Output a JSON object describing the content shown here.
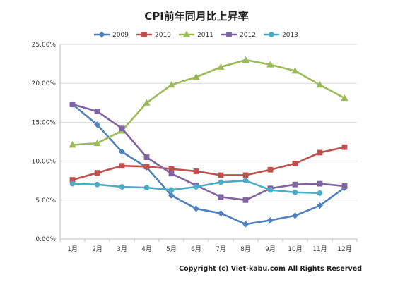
{
  "chart_data": {
    "type": "line",
    "title": "CPI前年同月比上昇率",
    "categories": [
      "1月",
      "2月",
      "3月",
      "4月",
      "5月",
      "6月",
      "7月",
      "8月",
      "9月",
      "10月",
      "11月",
      "12月"
    ],
    "ylim": [
      0,
      25
    ],
    "yticks": [
      "0.00%",
      "5.00%",
      "10.00%",
      "15.00%",
      "20.00%",
      "25.00%"
    ],
    "ytick_values": [
      0,
      5,
      10,
      15,
      20,
      25
    ],
    "grid": "horizontal",
    "legend": "top",
    "series": [
      {
        "name": "2009",
        "color": "#4f81bd",
        "marker": "diamond",
        "values": [
          17.3,
          14.7,
          11.2,
          9.2,
          5.6,
          3.9,
          3.3,
          1.9,
          2.4,
          3.0,
          4.3,
          6.6
        ]
      },
      {
        "name": "2010",
        "color": "#c0504d",
        "marker": "square",
        "values": [
          7.6,
          8.5,
          9.4,
          9.3,
          9.0,
          8.7,
          8.2,
          8.2,
          8.9,
          9.7,
          11.1,
          11.8
        ]
      },
      {
        "name": "2011",
        "color": "#9bbb59",
        "marker": "triangle",
        "values": [
          12.1,
          12.3,
          13.9,
          17.5,
          19.8,
          20.8,
          22.1,
          23.0,
          22.4,
          21.6,
          19.8,
          18.1
        ]
      },
      {
        "name": "2012",
        "color": "#8064a2",
        "marker": "square",
        "values": [
          17.3,
          16.4,
          14.2,
          10.5,
          8.4,
          6.9,
          5.4,
          5.0,
          6.5,
          7.0,
          7.1,
          6.8
        ]
      },
      {
        "name": "2013",
        "color": "#4bacc6",
        "marker": "circle",
        "values": [
          7.1,
          7.0,
          6.7,
          6.6,
          6.3,
          6.7,
          7.3,
          7.5,
          6.3,
          6.0,
          5.9,
          null
        ]
      }
    ]
  },
  "footer": {
    "copyright": "Copyright (c) Viet-kabu.com All Rights Reserved"
  }
}
